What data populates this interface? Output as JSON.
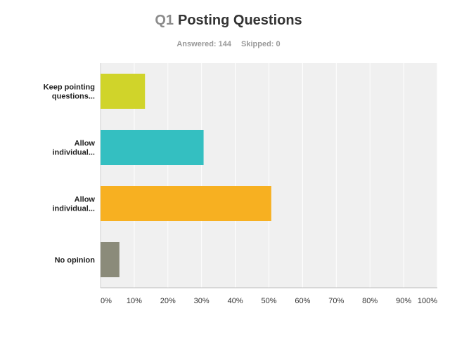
{
  "header": {
    "question_number": "Q1",
    "question_title": "Posting Questions",
    "answered_label": "Answered: 144",
    "skipped_label": "Skipped: 0"
  },
  "chart_data": {
    "type": "bar",
    "orientation": "horizontal",
    "categories": [
      [
        "Keep pointing",
        "questions..."
      ],
      [
        "Allow",
        "individual..."
      ],
      [
        "Allow",
        "individual..."
      ],
      [
        "No opinion"
      ]
    ],
    "values": [
      13.2,
      30.6,
      50.7,
      5.6
    ],
    "colors": [
      "#d0d42a",
      "#34bfc1",
      "#f7b021",
      "#8b8b7a"
    ],
    "xlim": [
      0,
      100
    ],
    "x_ticks": [
      "0%",
      "10%",
      "20%",
      "30%",
      "40%",
      "50%",
      "60%",
      "70%",
      "80%",
      "90%",
      "100%"
    ],
    "grid": true,
    "legend": "none"
  }
}
